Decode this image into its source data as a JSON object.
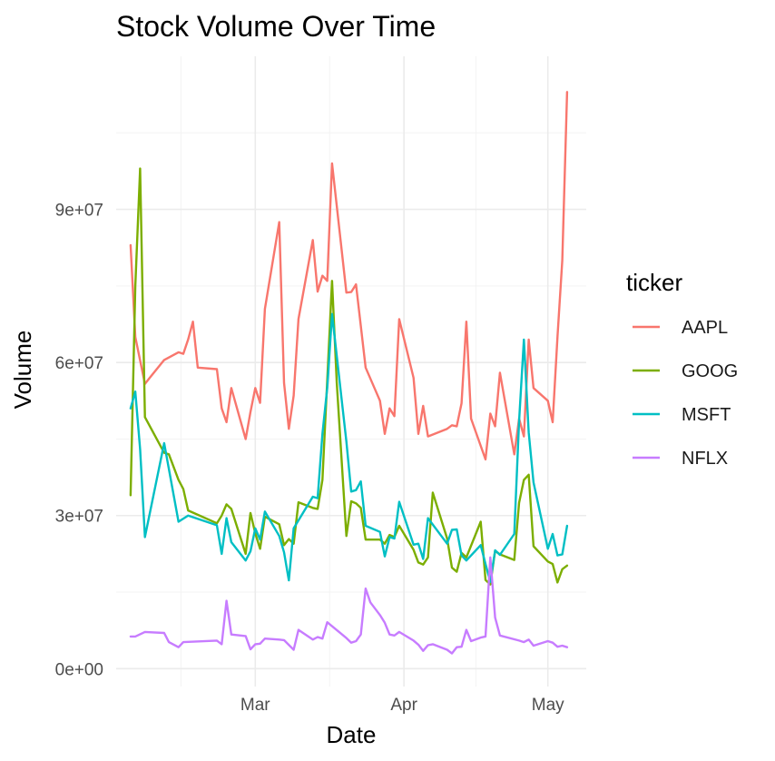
{
  "chart_data": {
    "type": "line",
    "title": "Stock Volume Over Time",
    "xlabel": "Date",
    "ylabel": "Volume",
    "x_ticks": [
      {
        "date": "2023-03-01",
        "label": "Mar"
      },
      {
        "date": "2023-04-01",
        "label": "Apr"
      },
      {
        "date": "2023-05-01",
        "label": "May"
      }
    ],
    "y_ticks": [
      {
        "value": 0,
        "label": "0e+00"
      },
      {
        "value": 30000000,
        "label": "3e+07"
      },
      {
        "value": 60000000,
        "label": "6e+07"
      },
      {
        "value": 90000000,
        "label": "9e+07"
      }
    ],
    "xlim": [
      "2023-01-31",
      "2023-05-09"
    ],
    "ylim": [
      -3500000,
      120000000
    ],
    "grid": true,
    "legend": {
      "title": "ticker",
      "position": "right"
    },
    "series": [
      {
        "name": "AAPL",
        "color": "#F8766D",
        "points": [
          [
            "2023-02-03",
            83000000
          ],
          [
            "2023-02-04",
            65000000
          ],
          [
            "2023-02-06",
            55800000
          ],
          [
            "2023-02-07",
            57000000
          ],
          [
            "2023-02-10",
            60500000
          ],
          [
            "2023-02-13",
            62000000
          ],
          [
            "2023-02-14",
            61700000
          ],
          [
            "2023-02-15",
            64500000
          ],
          [
            "2023-02-16",
            68000000
          ],
          [
            "2023-02-17",
            59000000
          ],
          [
            "2023-02-21",
            58700000
          ],
          [
            "2023-02-22",
            51000000
          ],
          [
            "2023-02-23",
            48300000
          ],
          [
            "2023-02-24",
            55000000
          ],
          [
            "2023-02-27",
            45000000
          ],
          [
            "2023-02-28",
            50300000
          ],
          [
            "2023-03-01",
            55000000
          ],
          [
            "2023-03-02",
            52100000
          ],
          [
            "2023-03-03",
            70500000
          ],
          [
            "2023-03-06",
            87500000
          ],
          [
            "2023-03-07",
            56000000
          ],
          [
            "2023-03-08",
            47000000
          ],
          [
            "2023-03-09",
            53500000
          ],
          [
            "2023-03-10",
            68500000
          ],
          [
            "2023-03-13",
            84000000
          ],
          [
            "2023-03-14",
            73900000
          ],
          [
            "2023-03-15",
            77000000
          ],
          [
            "2023-03-16",
            76000000
          ],
          [
            "2023-03-17",
            99000000
          ],
          [
            "2023-03-20",
            73700000
          ],
          [
            "2023-03-21",
            73800000
          ],
          [
            "2023-03-22",
            75300000
          ],
          [
            "2023-03-24",
            59000000
          ],
          [
            "2023-03-27",
            52500000
          ],
          [
            "2023-03-28",
            46000000
          ],
          [
            "2023-03-29",
            51000000
          ],
          [
            "2023-03-30",
            49500000
          ],
          [
            "2023-03-31",
            68500000
          ],
          [
            "2023-04-03",
            57000000
          ],
          [
            "2023-04-04",
            46000000
          ],
          [
            "2023-04-05",
            51500000
          ],
          [
            "2023-04-06",
            45500000
          ],
          [
            "2023-04-10",
            47000000
          ],
          [
            "2023-04-11",
            47700000
          ],
          [
            "2023-04-12",
            47500000
          ],
          [
            "2023-04-13",
            52000000
          ],
          [
            "2023-04-14",
            68000000
          ],
          [
            "2023-04-15",
            49000000
          ],
          [
            "2023-04-18",
            41000000
          ],
          [
            "2023-04-19",
            50000000
          ],
          [
            "2023-04-20",
            47500000
          ],
          [
            "2023-04-21",
            58000000
          ],
          [
            "2023-04-24",
            42000000
          ],
          [
            "2023-04-25",
            49000000
          ],
          [
            "2023-04-26",
            45500000
          ],
          [
            "2023-04-27",
            64500000
          ],
          [
            "2023-04-28",
            55000000
          ],
          [
            "2023-05-01",
            52500000
          ],
          [
            "2023-05-02",
            48300000
          ],
          [
            "2023-05-03",
            65000000
          ],
          [
            "2023-05-04",
            80000000
          ],
          [
            "2023-05-05",
            113000000
          ]
        ]
      },
      {
        "name": "GOOG",
        "color": "#7CAE00",
        "points": [
          [
            "2023-02-03",
            34000000
          ],
          [
            "2023-02-04",
            75000000
          ],
          [
            "2023-02-05",
            98000000
          ],
          [
            "2023-02-06",
            49300000
          ],
          [
            "2023-02-10",
            42300000
          ],
          [
            "2023-02-11",
            42000000
          ],
          [
            "2023-02-13",
            37000000
          ],
          [
            "2023-02-14",
            35200000
          ],
          [
            "2023-02-15",
            31000000
          ],
          [
            "2023-02-21",
            28500000
          ],
          [
            "2023-02-22",
            30000000
          ],
          [
            "2023-02-23",
            32200000
          ],
          [
            "2023-02-24",
            31300000
          ],
          [
            "2023-02-27",
            22500000
          ],
          [
            "2023-02-28",
            30500000
          ],
          [
            "2023-03-01",
            26500000
          ],
          [
            "2023-03-02",
            23500000
          ],
          [
            "2023-03-03",
            29800000
          ],
          [
            "2023-03-06",
            28300000
          ],
          [
            "2023-03-07",
            24200000
          ],
          [
            "2023-03-08",
            25400000
          ],
          [
            "2023-03-09",
            24500000
          ],
          [
            "2023-03-10",
            32600000
          ],
          [
            "2023-03-13",
            31500000
          ],
          [
            "2023-03-14",
            31300000
          ],
          [
            "2023-03-15",
            37000000
          ],
          [
            "2023-03-17",
            76000000
          ],
          [
            "2023-03-18",
            56000000
          ],
          [
            "2023-03-20",
            26000000
          ],
          [
            "2023-03-21",
            32800000
          ],
          [
            "2023-03-22",
            32400000
          ],
          [
            "2023-03-23",
            31500000
          ],
          [
            "2023-03-24",
            25300000
          ],
          [
            "2023-03-27",
            25300000
          ],
          [
            "2023-03-28",
            24500000
          ],
          [
            "2023-03-29",
            26200000
          ],
          [
            "2023-03-30",
            25800000
          ],
          [
            "2023-03-31",
            28000000
          ],
          [
            "2023-04-03",
            23300000
          ],
          [
            "2023-04-04",
            20800000
          ],
          [
            "2023-04-05",
            20400000
          ],
          [
            "2023-04-06",
            21800000
          ],
          [
            "2023-04-07",
            34500000
          ],
          [
            "2023-04-10",
            25500000
          ],
          [
            "2023-04-11",
            19800000
          ],
          [
            "2023-04-12",
            19000000
          ],
          [
            "2023-04-13",
            22700000
          ],
          [
            "2023-04-14",
            21800000
          ],
          [
            "2023-04-17",
            28800000
          ],
          [
            "2023-04-18",
            17400000
          ],
          [
            "2023-04-19",
            16500000
          ],
          [
            "2023-04-20",
            23100000
          ],
          [
            "2023-04-21",
            22400000
          ],
          [
            "2023-04-24",
            21300000
          ],
          [
            "2023-04-25",
            32500000
          ],
          [
            "2023-04-26",
            37000000
          ],
          [
            "2023-04-27",
            38000000
          ],
          [
            "2023-04-28",
            24000000
          ],
          [
            "2023-05-01",
            21000000
          ],
          [
            "2023-05-02",
            20500000
          ],
          [
            "2023-05-03",
            16900000
          ],
          [
            "2023-05-04",
            19500000
          ],
          [
            "2023-05-05",
            20200000
          ]
        ]
      },
      {
        "name": "MSFT",
        "color": "#00BFC4",
        "points": [
          [
            "2023-02-03",
            51000000
          ],
          [
            "2023-02-04",
            54300000
          ],
          [
            "2023-02-05",
            43000000
          ],
          [
            "2023-02-06",
            25800000
          ],
          [
            "2023-02-10",
            44200000
          ],
          [
            "2023-02-13",
            28800000
          ],
          [
            "2023-02-15",
            30000000
          ],
          [
            "2023-02-21",
            28100000
          ],
          [
            "2023-02-22",
            22500000
          ],
          [
            "2023-02-23",
            29500000
          ],
          [
            "2023-02-24",
            24800000
          ],
          [
            "2023-02-27",
            21200000
          ],
          [
            "2023-02-28",
            23000000
          ],
          [
            "2023-03-01",
            27500000
          ],
          [
            "2023-03-02",
            25300000
          ],
          [
            "2023-03-03",
            30800000
          ],
          [
            "2023-03-06",
            26000000
          ],
          [
            "2023-03-07",
            22800000
          ],
          [
            "2023-03-08",
            17300000
          ],
          [
            "2023-03-09",
            27500000
          ],
          [
            "2023-03-13",
            33700000
          ],
          [
            "2023-03-14",
            33400000
          ],
          [
            "2023-03-15",
            46000000
          ],
          [
            "2023-03-16",
            55000000
          ],
          [
            "2023-03-17",
            69500000
          ],
          [
            "2023-03-20",
            44500000
          ],
          [
            "2023-03-21",
            34700000
          ],
          [
            "2023-03-22",
            35000000
          ],
          [
            "2023-03-23",
            36700000
          ],
          [
            "2023-03-24",
            28000000
          ],
          [
            "2023-03-27",
            26800000
          ],
          [
            "2023-03-28",
            22000000
          ],
          [
            "2023-03-29",
            25800000
          ],
          [
            "2023-03-30",
            25500000
          ],
          [
            "2023-03-31",
            32700000
          ],
          [
            "2023-04-03",
            24300000
          ],
          [
            "2023-04-04",
            24500000
          ],
          [
            "2023-04-05",
            21500000
          ],
          [
            "2023-04-06",
            29500000
          ],
          [
            "2023-04-10",
            24500000
          ],
          [
            "2023-04-11",
            27200000
          ],
          [
            "2023-04-12",
            27300000
          ],
          [
            "2023-04-13",
            22200000
          ],
          [
            "2023-04-14",
            21200000
          ],
          [
            "2023-04-17",
            24200000
          ],
          [
            "2023-04-18",
            20500000
          ],
          [
            "2023-04-19",
            17000000
          ],
          [
            "2023-04-20",
            23200000
          ],
          [
            "2023-04-21",
            22300000
          ],
          [
            "2023-04-24",
            26400000
          ],
          [
            "2023-04-25",
            48500000
          ],
          [
            "2023-04-26",
            64500000
          ],
          [
            "2023-04-27",
            46300000
          ],
          [
            "2023-04-28",
            36500000
          ],
          [
            "2023-05-01",
            23500000
          ],
          [
            "2023-05-02",
            26400000
          ],
          [
            "2023-05-03",
            22200000
          ],
          [
            "2023-05-04",
            22400000
          ],
          [
            "2023-05-05",
            28000000
          ]
        ]
      },
      {
        "name": "NFLX",
        "color": "#C77CFF",
        "points": [
          [
            "2023-02-03",
            6300000
          ],
          [
            "2023-02-04",
            6300000
          ],
          [
            "2023-02-06",
            7200000
          ],
          [
            "2023-02-10",
            7000000
          ],
          [
            "2023-02-11",
            5200000
          ],
          [
            "2023-02-13",
            4200000
          ],
          [
            "2023-02-14",
            5200000
          ],
          [
            "2023-02-21",
            5500000
          ],
          [
            "2023-02-22",
            4800000
          ],
          [
            "2023-02-23",
            13300000
          ],
          [
            "2023-02-24",
            6700000
          ],
          [
            "2023-02-27",
            6400000
          ],
          [
            "2023-02-28",
            3800000
          ],
          [
            "2023-03-01",
            4800000
          ],
          [
            "2023-03-02",
            4900000
          ],
          [
            "2023-03-03",
            5900000
          ],
          [
            "2023-03-06",
            5700000
          ],
          [
            "2023-03-07",
            5600000
          ],
          [
            "2023-03-09",
            3700000
          ],
          [
            "2023-03-10",
            7600000
          ],
          [
            "2023-03-13",
            5700000
          ],
          [
            "2023-03-14",
            6200000
          ],
          [
            "2023-03-15",
            5900000
          ],
          [
            "2023-03-16",
            9100000
          ],
          [
            "2023-03-20",
            6000000
          ],
          [
            "2023-03-21",
            5100000
          ],
          [
            "2023-03-22",
            5400000
          ],
          [
            "2023-03-23",
            6700000
          ],
          [
            "2023-03-24",
            15700000
          ],
          [
            "2023-03-25",
            13000000
          ],
          [
            "2023-03-27",
            10500000
          ],
          [
            "2023-03-28",
            9000000
          ],
          [
            "2023-03-29",
            6700000
          ],
          [
            "2023-03-30",
            6500000
          ],
          [
            "2023-03-31",
            7200000
          ],
          [
            "2023-04-03",
            5500000
          ],
          [
            "2023-04-04",
            4700000
          ],
          [
            "2023-04-05",
            3500000
          ],
          [
            "2023-04-06",
            4600000
          ],
          [
            "2023-04-07",
            4800000
          ],
          [
            "2023-04-10",
            3700000
          ],
          [
            "2023-04-11",
            3000000
          ],
          [
            "2023-04-12",
            4200000
          ],
          [
            "2023-04-13",
            4300000
          ],
          [
            "2023-04-14",
            7600000
          ],
          [
            "2023-04-15",
            5400000
          ],
          [
            "2023-04-17",
            6100000
          ],
          [
            "2023-04-18",
            6300000
          ],
          [
            "2023-04-19",
            21800000
          ],
          [
            "2023-04-20",
            10000000
          ],
          [
            "2023-04-21",
            6500000
          ],
          [
            "2023-04-25",
            5500000
          ],
          [
            "2023-04-26",
            5200000
          ],
          [
            "2023-04-27",
            5700000
          ],
          [
            "2023-04-28",
            4500000
          ],
          [
            "2023-05-01",
            5400000
          ],
          [
            "2023-05-02",
            5100000
          ],
          [
            "2023-05-03",
            4300000
          ],
          [
            "2023-05-04",
            4500000
          ],
          [
            "2023-05-05",
            4200000
          ]
        ]
      }
    ]
  }
}
